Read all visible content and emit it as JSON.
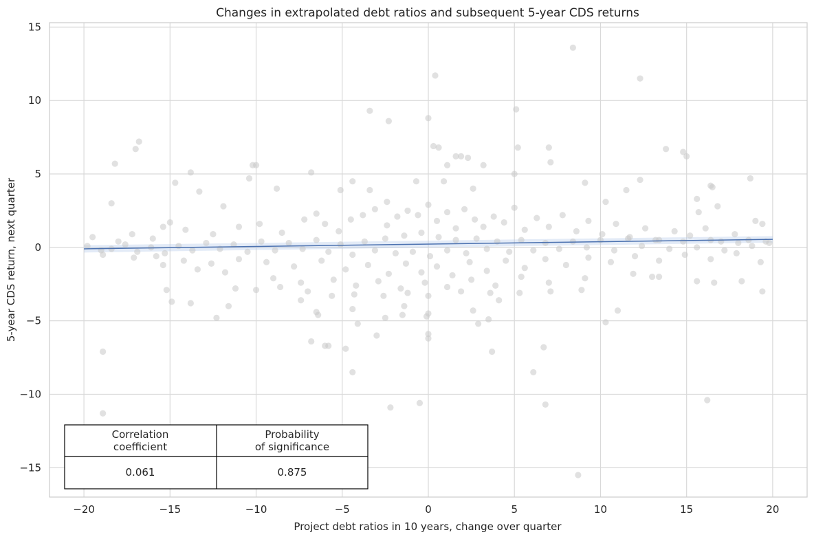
{
  "chart_data": {
    "type": "scatter",
    "title": "Changes in extrapolated debt ratios and subsequent 5-year CDS returns",
    "xlabel": "Project debt ratios in 10 years, change over quarter",
    "ylabel": "5-year CDS return, next quarter",
    "xlim": [
      -22,
      22
    ],
    "ylim": [
      -17,
      15.3
    ],
    "xticks": [
      -20,
      -15,
      -10,
      -5,
      0,
      5,
      10,
      15,
      20
    ],
    "yticks": [
      -15,
      -10,
      -5,
      0,
      5,
      10,
      15
    ],
    "grid": true,
    "point_color": "#c8c8c8",
    "line_color": "#4c72b0",
    "band_color": "#aec7e8",
    "regression": {
      "x": [
        -20,
        20
      ],
      "y": [
        -0.1,
        0.55
      ],
      "ci_half_width": [
        0.25,
        0.22
      ]
    },
    "points": [
      [
        8.4,
        13.6
      ],
      [
        0.4,
        11.7
      ],
      [
        12.3,
        11.5
      ],
      [
        -3.4,
        9.3
      ],
      [
        5.1,
        9.4
      ],
      [
        0.0,
        8.8
      ],
      [
        -2.3,
        8.6
      ],
      [
        -16.8,
        7.2
      ],
      [
        -17.0,
        6.7
      ],
      [
        0.3,
        6.9
      ],
      [
        0.6,
        6.8
      ],
      [
        5.2,
        6.8
      ],
      [
        7.0,
        6.8
      ],
      [
        13.8,
        6.7
      ],
      [
        14.8,
        6.5
      ],
      [
        15.0,
        6.2
      ],
      [
        1.6,
        6.2
      ],
      [
        1.9,
        6.2
      ],
      [
        2.3,
        6.1
      ],
      [
        -18.2,
        5.7
      ],
      [
        -10.2,
        5.6
      ],
      [
        -10.0,
        5.6
      ],
      [
        1.1,
        5.6
      ],
      [
        3.2,
        5.6
      ],
      [
        7.1,
        5.8
      ],
      [
        -13.8,
        5.1
      ],
      [
        -6.8,
        5.1
      ],
      [
        5.0,
        5.0
      ],
      [
        -10.4,
        4.7
      ],
      [
        -14.7,
        4.4
      ],
      [
        -4.4,
        4.5
      ],
      [
        -0.7,
        4.5
      ],
      [
        0.9,
        4.5
      ],
      [
        9.1,
        4.4
      ],
      [
        12.3,
        4.6
      ],
      [
        15.6,
        3.3
      ],
      [
        16.4,
        4.2
      ],
      [
        18.7,
        4.7
      ],
      [
        -13.3,
        3.8
      ],
      [
        -8.8,
        4.0
      ],
      [
        -5.1,
        3.9
      ],
      [
        -3.4,
        3.9
      ],
      [
        2.6,
        4.0
      ],
      [
        11.5,
        3.9
      ],
      [
        16.5,
        4.1
      ],
      [
        -18.4,
        3.0
      ],
      [
        -11.9,
        2.8
      ],
      [
        -6.5,
        2.3
      ],
      [
        -2.4,
        3.1
      ],
      [
        10.3,
        3.1
      ],
      [
        15.7,
        2.4
      ],
      [
        16.8,
        2.8
      ],
      [
        19.0,
        1.8
      ],
      [
        -15.0,
        1.7
      ],
      [
        -19.5,
        0.7
      ],
      [
        -18.0,
        0.4
      ],
      [
        -17.2,
        0.9
      ],
      [
        -16.0,
        0.6
      ],
      [
        -15.4,
        1.4
      ],
      [
        -14.1,
        1.2
      ],
      [
        -12.5,
        0.9
      ],
      [
        -11.0,
        1.4
      ],
      [
        -9.8,
        1.6
      ],
      [
        -8.5,
        1.0
      ],
      [
        -7.2,
        1.9
      ],
      [
        -6.0,
        1.6
      ],
      [
        -5.2,
        1.1
      ],
      [
        -4.5,
        1.9
      ],
      [
        -3.8,
        2.2
      ],
      [
        -3.1,
        2.6
      ],
      [
        -2.4,
        1.5
      ],
      [
        -1.8,
        2.1
      ],
      [
        -1.2,
        2.5
      ],
      [
        -0.6,
        2.2
      ],
      [
        0.0,
        2.9
      ],
      [
        0.5,
        1.8
      ],
      [
        1.1,
        2.4
      ],
      [
        1.6,
        1.3
      ],
      [
        2.1,
        2.6
      ],
      [
        2.7,
        1.9
      ],
      [
        3.2,
        1.4
      ],
      [
        3.8,
        2.1
      ],
      [
        4.4,
        1.7
      ],
      [
        5.0,
        2.7
      ],
      [
        5.6,
        1.2
      ],
      [
        6.3,
        2.0
      ],
      [
        7.0,
        1.4
      ],
      [
        7.8,
        2.2
      ],
      [
        8.6,
        1.1
      ],
      [
        9.3,
        1.8
      ],
      [
        10.1,
        0.9
      ],
      [
        10.9,
        1.6
      ],
      [
        11.7,
        0.7
      ],
      [
        12.6,
        1.3
      ],
      [
        13.4,
        0.5
      ],
      [
        14.3,
        1.1
      ],
      [
        15.2,
        0.8
      ],
      [
        16.1,
        1.3
      ],
      [
        17.0,
        0.4
      ],
      [
        17.8,
        0.9
      ],
      [
        18.6,
        0.5
      ],
      [
        19.4,
        1.6
      ],
      [
        19.8,
        0.3
      ],
      [
        -19.8,
        0.1
      ],
      [
        -19.0,
        -0.2
      ],
      [
        -18.4,
        -0.1
      ],
      [
        -17.6,
        0.2
      ],
      [
        -16.9,
        -0.3
      ],
      [
        -16.1,
        0.0
      ],
      [
        -15.3,
        -0.4
      ],
      [
        -14.5,
        0.1
      ],
      [
        -13.7,
        -0.2
      ],
      [
        -12.9,
        0.3
      ],
      [
        -12.1,
        -0.1
      ],
      [
        -11.3,
        0.2
      ],
      [
        -10.5,
        -0.3
      ],
      [
        -9.7,
        0.4
      ],
      [
        -8.9,
        -0.2
      ],
      [
        -8.1,
        0.3
      ],
      [
        -7.3,
        -0.1
      ],
      [
        -6.5,
        0.5
      ],
      [
        -5.8,
        -0.3
      ],
      [
        -5.1,
        0.2
      ],
      [
        -4.4,
        -0.5
      ],
      [
        -3.7,
        0.4
      ],
      [
        -3.1,
        -0.2
      ],
      [
        -2.5,
        0.6
      ],
      [
        -1.9,
        -0.4
      ],
      [
        -1.4,
        0.8
      ],
      [
        -0.9,
        -0.3
      ],
      [
        -0.4,
        1.0
      ],
      [
        0.1,
        -0.6
      ],
      [
        0.6,
        0.7
      ],
      [
        1.1,
        -0.2
      ],
      [
        1.6,
        0.5
      ],
      [
        2.2,
        -0.4
      ],
      [
        2.8,
        0.6
      ],
      [
        3.4,
        -0.1
      ],
      [
        4.0,
        0.4
      ],
      [
        4.7,
        -0.3
      ],
      [
        5.4,
        0.5
      ],
      [
        6.1,
        -0.2
      ],
      [
        6.8,
        0.3
      ],
      [
        7.6,
        -0.1
      ],
      [
        8.4,
        0.4
      ],
      [
        9.2,
        0.0
      ],
      [
        10.0,
        0.5
      ],
      [
        10.8,
        -0.2
      ],
      [
        11.6,
        0.6
      ],
      [
        12.4,
        0.1
      ],
      [
        13.2,
        0.5
      ],
      [
        14.0,
        -0.1
      ],
      [
        14.8,
        0.4
      ],
      [
        15.6,
        0.0
      ],
      [
        16.4,
        0.5
      ],
      [
        17.2,
        -0.2
      ],
      [
        18.0,
        0.3
      ],
      [
        18.8,
        0.1
      ],
      [
        19.6,
        0.4
      ],
      [
        -18.9,
        -0.5
      ],
      [
        -17.1,
        -0.7
      ],
      [
        -15.8,
        -0.6
      ],
      [
        -14.2,
        -0.9
      ],
      [
        -12.6,
        -1.1
      ],
      [
        -11.0,
        -0.8
      ],
      [
        -9.4,
        -1.0
      ],
      [
        -7.8,
        -1.3
      ],
      [
        -6.2,
        -0.9
      ],
      [
        -4.8,
        -1.5
      ],
      [
        -3.5,
        -1.2
      ],
      [
        -2.3,
        -1.8
      ],
      [
        -1.3,
        -1.1
      ],
      [
        -0.4,
        -1.7
      ],
      [
        0.5,
        -1.3
      ],
      [
        1.4,
        -1.9
      ],
      [
        2.4,
        -1.0
      ],
      [
        3.4,
        -1.6
      ],
      [
        4.5,
        -0.9
      ],
      [
        5.6,
        -1.4
      ],
      [
        6.8,
        -0.8
      ],
      [
        8.0,
        -1.2
      ],
      [
        9.3,
        -0.7
      ],
      [
        10.6,
        -1.0
      ],
      [
        12.0,
        -0.6
      ],
      [
        13.4,
        -0.9
      ],
      [
        14.9,
        -0.5
      ],
      [
        16.4,
        -0.8
      ],
      [
        17.9,
        -0.4
      ],
      [
        19.3,
        -1.0
      ],
      [
        -15.4,
        -1.2
      ],
      [
        -13.4,
        -1.5
      ],
      [
        -11.8,
        -1.7
      ],
      [
        -9.0,
        -2.1
      ],
      [
        -7.4,
        -2.4
      ],
      [
        -5.5,
        -2.2
      ],
      [
        -4.2,
        -2.6
      ],
      [
        -2.9,
        -2.3
      ],
      [
        -1.6,
        -2.8
      ],
      [
        -0.2,
        -2.4
      ],
      [
        1.1,
        -2.7
      ],
      [
        2.5,
        -2.2
      ],
      [
        3.9,
        -2.6
      ],
      [
        5.4,
        -2.0
      ],
      [
        7.0,
        -2.4
      ],
      [
        9.1,
        -2.1
      ],
      [
        11.9,
        -1.8
      ],
      [
        13.4,
        -2.0
      ],
      [
        15.6,
        -2.3
      ],
      [
        16.6,
        -2.4
      ],
      [
        18.2,
        -2.3
      ],
      [
        -15.2,
        -2.9
      ],
      [
        -14.9,
        -3.7
      ],
      [
        -13.8,
        -3.8
      ],
      [
        -11.2,
        -2.8
      ],
      [
        -10.0,
        -2.9
      ],
      [
        -8.6,
        -2.7
      ],
      [
        -7.0,
        -3.0
      ],
      [
        -5.6,
        -3.3
      ],
      [
        -4.3,
        -3.2
      ],
      [
        -2.6,
        -3.3
      ],
      [
        -1.2,
        -3.1
      ],
      [
        0.0,
        -3.3
      ],
      [
        1.9,
        -3.0
      ],
      [
        3.6,
        -3.1
      ],
      [
        5.3,
        -3.1
      ],
      [
        7.1,
        -3.0
      ],
      [
        8.9,
        -2.9
      ],
      [
        13.0,
        -2.0
      ],
      [
        19.4,
        -3.0
      ],
      [
        -11.6,
        -4.0
      ],
      [
        -7.4,
        -3.6
      ],
      [
        -4.4,
        -4.2
      ],
      [
        -1.4,
        -4.0
      ],
      [
        0.0,
        -4.5
      ],
      [
        2.6,
        -4.3
      ],
      [
        4.1,
        -3.6
      ],
      [
        -6.5,
        -4.4
      ],
      [
        -6.4,
        -4.6
      ],
      [
        -2.5,
        -4.8
      ],
      [
        -1.5,
        -4.6
      ],
      [
        -0.1,
        -4.7
      ],
      [
        2.9,
        -5.2
      ],
      [
        3.5,
        -4.9
      ],
      [
        -12.3,
        -4.8
      ],
      [
        -4.1,
        -5.2
      ],
      [
        10.3,
        -5.1
      ],
      [
        11.0,
        -4.3
      ],
      [
        -3.0,
        -6.0
      ],
      [
        0.0,
        -5.9
      ],
      [
        0.0,
        -6.2
      ],
      [
        -6.8,
        -6.4
      ],
      [
        -6.0,
        -6.7
      ],
      [
        -5.8,
        -6.7
      ],
      [
        -4.8,
        -6.9
      ],
      [
        6.7,
        -6.8
      ],
      [
        3.7,
        -7.1
      ],
      [
        -18.9,
        -7.1
      ],
      [
        -4.4,
        -8.5
      ],
      [
        6.1,
        -8.5
      ],
      [
        -0.5,
        -10.6
      ],
      [
        -2.2,
        -10.9
      ],
      [
        6.8,
        -10.7
      ],
      [
        16.2,
        -10.4
      ],
      [
        -18.9,
        -11.3
      ],
      [
        8.7,
        -15.5
      ]
    ],
    "stats_table": {
      "headers": [
        "Correlation\ncoefficient",
        "Probability\nof significance"
      ],
      "values": [
        "0.061",
        "0.875"
      ]
    }
  }
}
